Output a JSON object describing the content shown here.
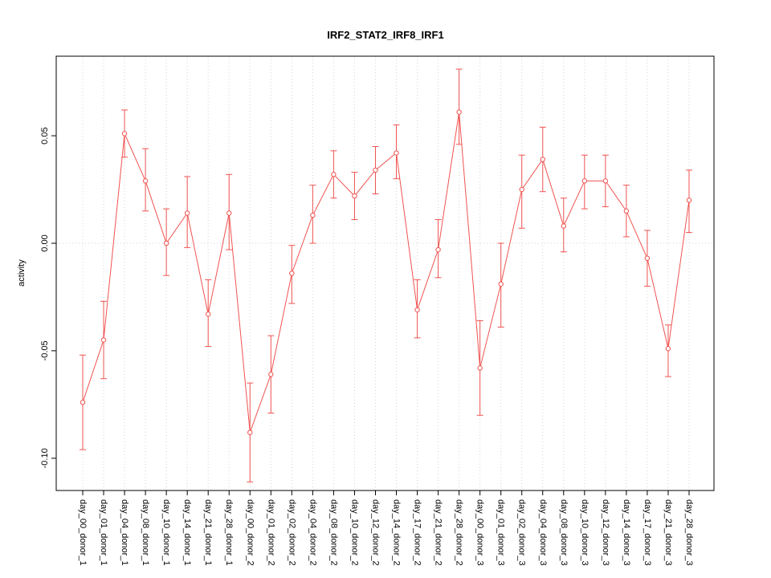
{
  "chart_data": {
    "type": "line",
    "title": "IRF2_STAT2_IRF8_IRF1",
    "xlabel": "",
    "ylabel": "activity",
    "ylim": [
      -0.115,
      0.087
    ],
    "yticks": [
      -0.1,
      -0.05,
      0.0,
      0.05
    ],
    "ytick_labels": [
      "-0.10",
      "-0.05",
      "0.00",
      "0.05"
    ],
    "grid_vertical": true,
    "grid_horizontal_at": [
      0.0
    ],
    "grid_color": "#d4d4d4",
    "series_color": "#ef5350",
    "axis_color": "#000000",
    "legend": "none",
    "categories": [
      "day_00_donor_1",
      "day_01_donor_1",
      "day_04_donor_1",
      "day_08_donor_1",
      "day_10_donor_1",
      "day_14_donor_1",
      "day_21_donor_1",
      "day_28_donor_1",
      "day_00_donor_2",
      "day_01_donor_2",
      "day_02_donor_2",
      "day_04_donor_2",
      "day_08_donor_2",
      "day_10_donor_2",
      "day_12_donor_2",
      "day_14_donor_2",
      "day_17_donor_2",
      "day_21_donor_2",
      "day_28_donor_2",
      "day_00_donor_3",
      "day_01_donor_3",
      "day_02_donor_3",
      "day_04_donor_3",
      "day_08_donor_3",
      "day_10_donor_3",
      "day_12_donor_3",
      "day_14_donor_3",
      "day_17_donor_3",
      "day_21_donor_3",
      "day_28_donor_3"
    ],
    "values": [
      -0.074,
      -0.045,
      0.051,
      0.029,
      0.0,
      0.014,
      -0.033,
      0.014,
      -0.088,
      -0.061,
      -0.014,
      0.013,
      0.032,
      0.022,
      0.034,
      0.042,
      -0.031,
      -0.003,
      0.061,
      -0.058,
      -0.019,
      0.025,
      0.039,
      0.008,
      0.029,
      0.029,
      0.015,
      -0.007,
      -0.049,
      0.02
    ],
    "error_low": [
      -0.096,
      -0.063,
      0.04,
      0.015,
      -0.015,
      -0.002,
      -0.048,
      -0.003,
      -0.111,
      -0.079,
      -0.028,
      0.0,
      0.021,
      0.011,
      0.023,
      0.03,
      -0.044,
      -0.016,
      0.046,
      -0.08,
      -0.039,
      0.007,
      0.024,
      -0.004,
      0.016,
      0.017,
      0.003,
      -0.02,
      -0.062,
      0.005
    ],
    "error_high": [
      -0.052,
      -0.027,
      0.062,
      0.044,
      0.016,
      0.031,
      -0.017,
      0.032,
      -0.065,
      -0.043,
      -0.001,
      0.027,
      0.043,
      0.033,
      0.045,
      0.055,
      -0.017,
      0.011,
      0.081,
      -0.036,
      0.0,
      0.041,
      0.054,
      0.021,
      0.041,
      0.041,
      0.027,
      0.006,
      -0.038,
      0.034
    ]
  }
}
